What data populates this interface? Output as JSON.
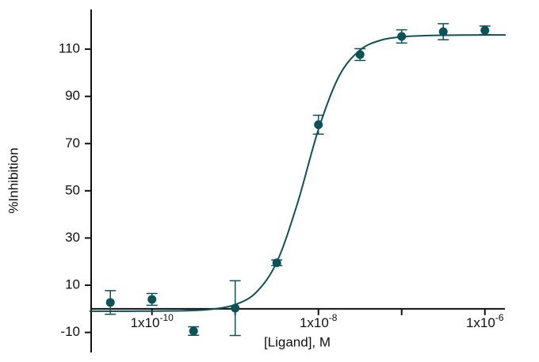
{
  "chart_data": {
    "type": "dose-response",
    "x_label": "[Ligand], M",
    "y_label": "%Inhibition",
    "x_scale": "log",
    "color": "#0e5257",
    "x": [
      3.162e-11,
      1e-10,
      3.162e-10,
      1e-09,
      3.162e-09,
      1e-08,
      3.162e-08,
      1e-07,
      3.162e-07,
      1e-06
    ],
    "values": [
      2.7,
      4,
      -9.4,
      0.3,
      19.5,
      78,
      107.7,
      115.4,
      117.4,
      118
    ],
    "errors": [
      5,
      2.5,
      1.8,
      11.6,
      1.2,
      4,
      2.5,
      2.8,
      3.4,
      1.8
    ],
    "curve": {
      "x": [
        1.778e-11,
        3.162e-11,
        5.623e-11,
        1e-10,
        1.778e-10,
        3.162e-10,
        5.623e-10,
        1e-09,
        1.778e-09,
        3.162e-09,
        5.623e-09,
        1e-08,
        1.778e-08,
        3.162e-08,
        5.623e-08,
        1e-07,
        1.778e-07,
        3.162e-07,
        5.623e-07,
        1e-06,
        1.778e-06
      ],
      "values": [
        -1,
        -1,
        -0.99,
        -0.96,
        -0.89,
        -0.68,
        -0.06,
        1.77,
        6.9,
        19.8,
        44.9,
        76,
        98.7,
        109.6,
        113.8,
        115.2,
        115.7,
        115.9,
        115.97,
        116,
        116
      ]
    },
    "xlim": [
      1.86e-11,
      1.74e-06
    ],
    "ylim": [
      -18.5,
      126.8
    ],
    "xticks": [
      {
        "value": 1e-10,
        "label": [
          "1x10",
          "-10"
        ]
      },
      {
        "value": 1e-09,
        "label": null
      },
      {
        "value": 1e-08,
        "label": [
          "1x10",
          "-8"
        ]
      },
      {
        "value": 1e-07,
        "label": null
      },
      {
        "value": 1e-06,
        "label": [
          "1x10",
          "-6"
        ]
      }
    ],
    "yticks": [
      -10,
      10,
      30,
      50,
      70,
      90,
      110
    ]
  }
}
